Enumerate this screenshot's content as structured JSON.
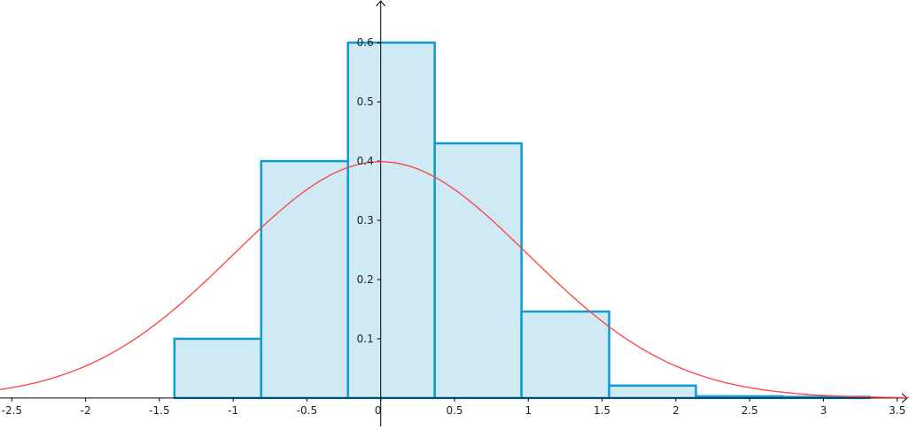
{
  "chart_data": {
    "type": "bar",
    "subtype": "histogram-with-normal-curve",
    "xlim": [
      -2.58,
      3.58
    ],
    "ylim": [
      -0.048,
      0.672
    ],
    "grid": false,
    "x_ticks": [
      -2.5,
      -2,
      -1.5,
      -1,
      -0.5,
      0,
      0.5,
      1,
      1.5,
      2,
      2.5,
      3,
      3.5
    ],
    "x_tick_labels": [
      "-2.5",
      "-2",
      "-1.5",
      "-1",
      "-0.5",
      "0",
      "0.5",
      "1",
      "1.5",
      "2",
      "2.5",
      "3",
      "3.5"
    ],
    "y_ticks": [
      0.1,
      0.2,
      0.3,
      0.4,
      0.5,
      0.6
    ],
    "y_tick_labels": [
      "0.1",
      "0.2",
      "0.3",
      "0.4",
      "0.5",
      "0.6"
    ],
    "bins": [
      {
        "from": -1.398,
        "to": -0.81,
        "value": 0.1
      },
      {
        "from": -0.81,
        "to": -0.222,
        "value": 0.4
      },
      {
        "from": -0.222,
        "to": 0.366,
        "value": 0.6
      },
      {
        "from": 0.366,
        "to": 0.954,
        "value": 0.43
      },
      {
        "from": 0.954,
        "to": 1.548,
        "value": 0.146
      },
      {
        "from": 1.548,
        "to": 2.136,
        "value": 0.021
      },
      {
        "from": 2.136,
        "to": 2.724,
        "value": 0.003
      },
      {
        "from": 2.724,
        "to": 3.312,
        "value": 0.002
      }
    ],
    "curve": {
      "type": "normal-pdf",
      "mean": 0,
      "sd": 1
    },
    "colors": {
      "bar_fill": "#cfeaf4",
      "bar_stroke": "#0f9bd1",
      "curve": "#ff4040",
      "axis": "#000000"
    }
  }
}
